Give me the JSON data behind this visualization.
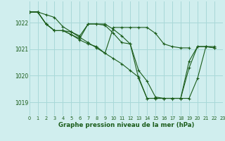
{
  "background_color": "#d0eeee",
  "grid_color": "#a8d8d8",
  "line_color": "#1a5c1a",
  "title": "Graphe pression niveau de la mer (hPa)",
  "xlim": [
    0,
    23
  ],
  "ylim": [
    1018.5,
    1022.8
  ],
  "yticks": [
    1019,
    1020,
    1021,
    1022
  ],
  "xticks": [
    0,
    1,
    2,
    3,
    4,
    5,
    6,
    7,
    8,
    9,
    10,
    11,
    12,
    13,
    14,
    15,
    16,
    17,
    18,
    19,
    20,
    21,
    22,
    23
  ],
  "series_x": [
    [
      0,
      1,
      2,
      3,
      4,
      5,
      6,
      7,
      8,
      9,
      10,
      11,
      12,
      13,
      14,
      15,
      16,
      17,
      18,
      19,
      20,
      21,
      22
    ],
    [
      0,
      1,
      2,
      3,
      4,
      5,
      6,
      7,
      8,
      9,
      10,
      11,
      12,
      13,
      14,
      15,
      16,
      17,
      18,
      19,
      20,
      21,
      22
    ],
    [
      0,
      1,
      2,
      3,
      4,
      5,
      6,
      7,
      8,
      9,
      10,
      11,
      12,
      13,
      14,
      15,
      16,
      17,
      18,
      19,
      20,
      21,
      22
    ],
    [
      0,
      1,
      2,
      3,
      4,
      5,
      6,
      7,
      8,
      9,
      10,
      11,
      12,
      13,
      14,
      15,
      16,
      17,
      18,
      19,
      20,
      21,
      22
    ]
  ],
  "series_y": [
    [
      1022.4,
      1022.4,
      1022.3,
      1022.2,
      1021.85,
      1021.65,
      1021.45,
      1021.25,
      1021.05,
      1020.85,
      1020.65,
      1020.45,
      1020.2,
      1019.95,
      1019.15,
      1019.15,
      1019.15,
      1019.15,
      1019.15,
      1019.15,
      1019.9,
      1021.1,
      1021.1
    ],
    [
      1022.4,
      1022.4,
      1021.95,
      1021.7,
      1021.7,
      1021.65,
      1021.5,
      1021.95,
      1021.95,
      1021.95,
      1021.75,
      1021.5,
      1021.2,
      1019.9,
      1019.15,
      1019.15,
      1019.15,
      1019.15,
      1019.15,
      1020.3,
      1021.1,
      1021.1,
      1021.05
    ],
    [
      1022.4,
      1022.4,
      1021.95,
      1021.7,
      1021.7,
      1021.55,
      1021.4,
      1021.95,
      1021.95,
      1021.9,
      1021.6,
      1021.25,
      1021.2,
      1020.2,
      1019.8,
      1019.2,
      1019.15,
      1019.15,
      1019.15,
      1020.55,
      1021.1,
      1021.1,
      1021.05
    ],
    [
      1022.4,
      1022.4,
      1021.95,
      1021.7,
      1021.7,
      1021.55,
      1021.35,
      1021.2,
      1021.1,
      1020.85,
      1021.82,
      1021.82,
      1021.82,
      1021.82,
      1021.82,
      1021.6,
      1021.2,
      1021.1,
      1021.05,
      1021.05,
      null,
      null,
      null
    ]
  ]
}
